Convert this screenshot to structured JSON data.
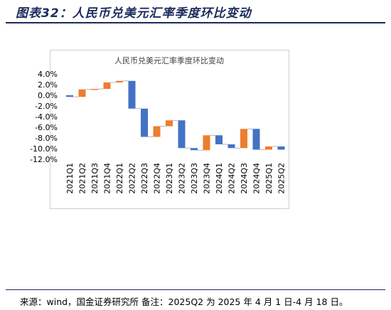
{
  "header": {
    "figure_title": "图表32：人民币兑美元汇率季度环比变动"
  },
  "footer": {
    "source_note": "来源：wind，国金证券研究所 备注：2025Q2 为 2025 年 4 月 1 日-4 月 18 日。"
  },
  "colors": {
    "up": "#ed7d31",
    "down": "#4472c4",
    "title": "#1c2a5c",
    "connector": "#a6a6a6"
  },
  "chart_data": {
    "type": "bar",
    "subtype": "waterfall",
    "title": "人民币兑美元汇率季度环比变动",
    "categories": [
      "2021Q1",
      "2021Q2",
      "2021Q3",
      "2021Q4",
      "2022Q1",
      "2022Q2",
      "2022Q3",
      "2022Q4",
      "2023Q1",
      "2023Q2",
      "2023Q3",
      "2023Q4",
      "2024Q1",
      "2024Q2",
      "2024Q3",
      "2024Q4",
      "2025Q1",
      "2025Q2"
    ],
    "values": [
      -0.3,
      1.4,
      0.1,
      1.2,
      0.3,
      -5.2,
      -5.3,
      2.0,
      1.1,
      -5.2,
      -0.4,
      2.8,
      -1.7,
      -0.7,
      3.6,
      -3.9,
      0.6,
      -0.6
    ],
    "ylim": [
      -12,
      4
    ],
    "yticks": [
      "4.0%",
      "2.0%",
      "0.0%",
      "-2.0%",
      "-4.0%",
      "-6.0%",
      "-8.0%",
      "-10.0%",
      "-12.0%"
    ],
    "grid": false,
    "legend": "none"
  }
}
